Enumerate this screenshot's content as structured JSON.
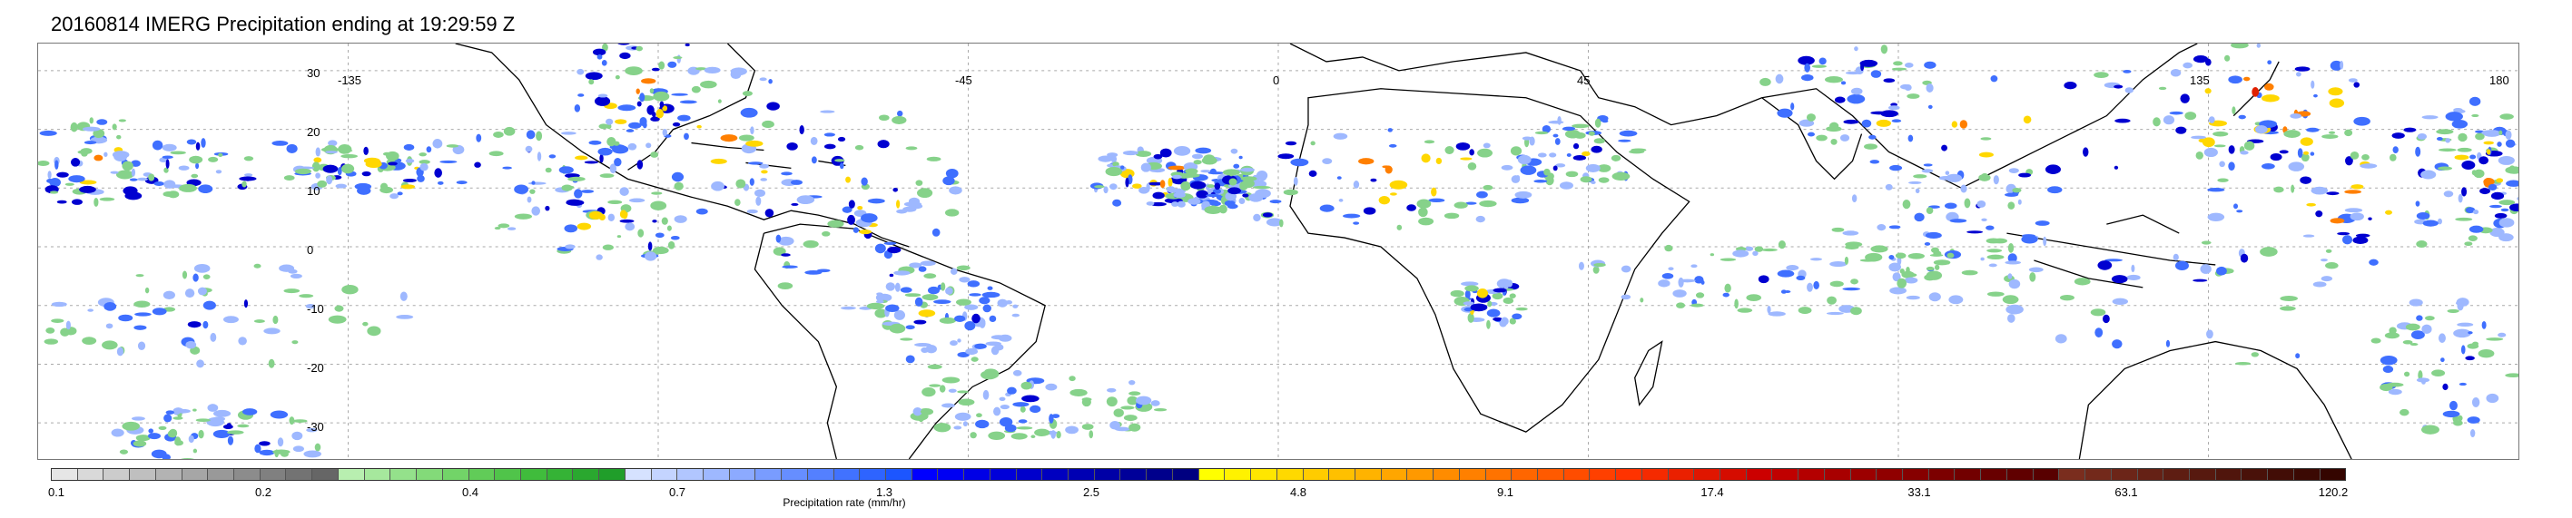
{
  "title": "20160814 IMERG Precipitation ending at 19:29:59 Z",
  "map": {
    "lat_labels": [
      "30",
      "20",
      "10",
      "0",
      "-10",
      "-20",
      "-30"
    ],
    "lon_labels": [
      "-135",
      "-45",
      "0",
      "45",
      "135",
      "180"
    ]
  },
  "colorbar": {
    "label": "Precipitation rate (mm/hr)",
    "tick_labels": [
      "0.1",
      "0.2",
      "0.4",
      "0.7",
      "1.3",
      "2.5",
      "4.8",
      "9.1",
      "17.4",
      "33.1",
      "63.1",
      "120.2"
    ],
    "colors": [
      "#e6e6e6",
      "#d9d9d9",
      "#cccccc",
      "#bfbfbf",
      "#b3b3b3",
      "#a6a6a6",
      "#999999",
      "#8c8c8c",
      "#808080",
      "#737373",
      "#666666",
      "#b8efb0",
      "#a6e89d",
      "#94e18b",
      "#83da79",
      "#72d468",
      "#61cc58",
      "#50c44a",
      "#40bc3c",
      "#35b336",
      "#2aa82f",
      "#209e2a",
      "#d6e2ff",
      "#c4d4ff",
      "#b1c6ff",
      "#9eb8ff",
      "#8caaff",
      "#799cff",
      "#668eff",
      "#5480ff",
      "#4172ff",
      "#2e64ff",
      "#1c56ff",
      "#0000ff",
      "#0000f3",
      "#0000e6",
      "#0000d9",
      "#0000cc",
      "#0000c0",
      "#0000b3",
      "#0000a6",
      "#000099",
      "#00008c",
      "#000080",
      "#ffff00",
      "#fff200",
      "#ffe600",
      "#ffd900",
      "#ffcc00",
      "#ffc000",
      "#ffb300",
      "#ffa600",
      "#ff9900",
      "#ff8c00",
      "#ff8000",
      "#ff7300",
      "#ff6600",
      "#ff5a00",
      "#ff4d00",
      "#ff4000",
      "#ff3300",
      "#f52a00",
      "#ea2000",
      "#e01600",
      "#d50c00",
      "#cc0000",
      "#c00000",
      "#b40000",
      "#a80000",
      "#9c0000",
      "#900000",
      "#860000",
      "#7c0000",
      "#720000",
      "#680000",
      "#600000",
      "#580000",
      "#7a2d1e",
      "#73291b",
      "#6c2518",
      "#652115",
      "#5e1d12",
      "#57190f",
      "#50150c",
      "#491109",
      "#420d06",
      "#3b0903",
      "#340500"
    ]
  }
}
